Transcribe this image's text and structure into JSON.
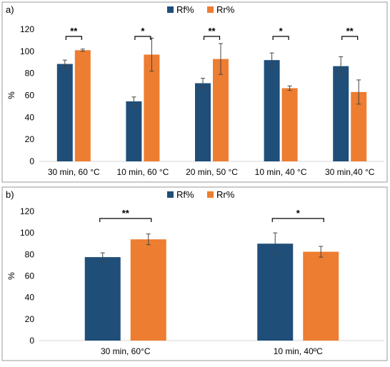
{
  "colors": {
    "rf": "#1f4e79",
    "rr": "#ed7d31",
    "axis": "#d9d9d9",
    "errorbar": "#444444",
    "bracket": "#000000"
  },
  "chart_data": [
    {
      "type": "bar",
      "panel_label": "a)",
      "ylabel": "%",
      "xlabel": "",
      "ylim": [
        0,
        120
      ],
      "yticks": [
        0,
        20,
        40,
        60,
        80,
        100,
        120
      ],
      "legend": "top-center",
      "grid": false,
      "categories": [
        "30 min, 60 °C",
        "10 min, 60 °C",
        "20 min, 50 °C",
        "10 min, 40 °C",
        "30 min,40 °C"
      ],
      "series": [
        {
          "name": "Rf%",
          "color": "#1f4e79",
          "values": [
            88.5,
            54.5,
            71,
            92,
            86.5
          ],
          "errors": [
            3.5,
            4,
            4.5,
            6.5,
            8.5
          ]
        },
        {
          "name": "Rr%",
          "color": "#ed7d31",
          "values": [
            101,
            97,
            93,
            66.5,
            63
          ],
          "errors": [
            1,
            15,
            14,
            2,
            11
          ]
        }
      ],
      "significance": [
        "**",
        "*",
        "**",
        "*",
        "**"
      ]
    },
    {
      "type": "bar",
      "panel_label": "b)",
      "ylabel": "%",
      "xlabel": "",
      "ylim": [
        0,
        120
      ],
      "yticks": [
        0,
        20,
        40,
        60,
        80,
        100,
        120
      ],
      "legend": "top-center",
      "grid": false,
      "categories": [
        "30 min, 60°C",
        "10 min, 40ºC"
      ],
      "series": [
        {
          "name": "Rf%",
          "color": "#1f4e79",
          "values": [
            77.5,
            90
          ],
          "errors": [
            4,
            10
          ]
        },
        {
          "name": "Rr%",
          "color": "#ed7d31",
          "values": [
            94,
            82.5
          ],
          "errors": [
            5,
            5
          ]
        }
      ],
      "significance": [
        "**",
        "*"
      ]
    }
  ]
}
